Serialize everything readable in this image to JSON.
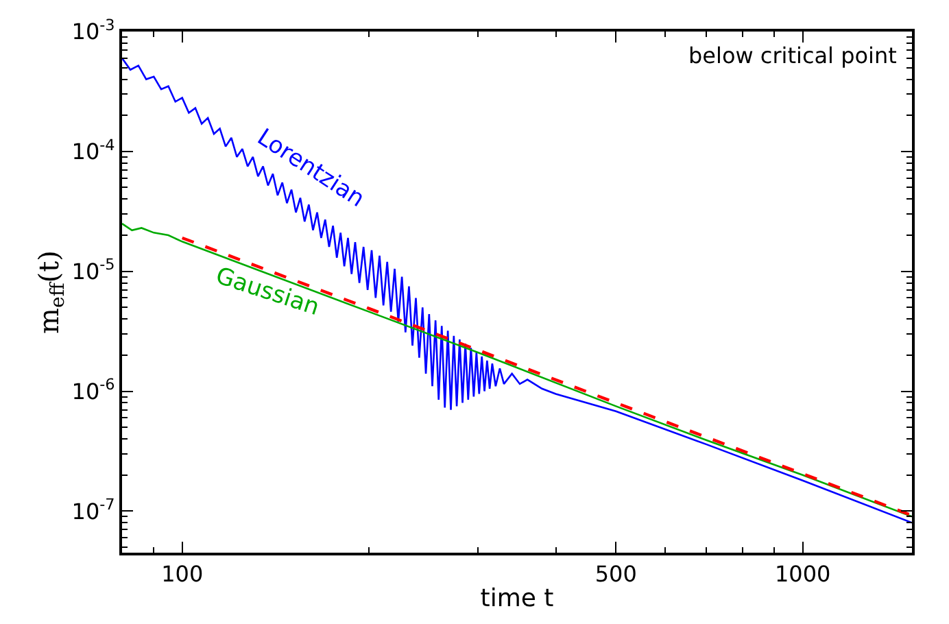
{
  "chart_data": {
    "type": "line",
    "xlabel": "time t",
    "ylabel": "m$_{eff}$(t)",
    "log": "xy",
    "legend": false,
    "marker": "none",
    "xlim": [
      80,
      1500
    ],
    "ylim": [
      4.5e-08,
      0.001
    ],
    "xticks": [
      100,
      500,
      1000
    ],
    "yticks": [
      {
        "value": 1e-07,
        "label": "10$^{-7}$"
      },
      {
        "value": 1e-06,
        "label": "10$^{-6}$"
      },
      {
        "value": 1e-05,
        "label": "10$^{-5}$"
      },
      {
        "value": 0.0001,
        "label": "10$^{-4}$"
      },
      {
        "value": 0.001,
        "label": "10$^{-3}$"
      }
    ],
    "annotations": [
      "below critical point"
    ],
    "series": [
      {
        "name": "Lorentzian",
        "color": "#0000ff",
        "line_style": "solid",
        "x": [
          80,
          82.5,
          85,
          87.5,
          90,
          92.5,
          95,
          97.5,
          100,
          102.5,
          105,
          107.5,
          110,
          112.5,
          115,
          117.5,
          120,
          122.5,
          125,
          127.5,
          130,
          132.5,
          135,
          137.5,
          140,
          142.5,
          145,
          147.5,
          150,
          152.5,
          155,
          157.5,
          160,
          162.5,
          165,
          167.5,
          170,
          172.5,
          175,
          177.5,
          180,
          182.5,
          185,
          187.5,
          190,
          193,
          196,
          199,
          202,
          205,
          208,
          211,
          214,
          217,
          220,
          223,
          226,
          229,
          232,
          235,
          238,
          241,
          244,
          247,
          250,
          253,
          256,
          259,
          262,
          265,
          268,
          271,
          274,
          277,
          280,
          283,
          286,
          289,
          292,
          295,
          298,
          301,
          304,
          307,
          310,
          313,
          316,
          320,
          325,
          330,
          340,
          350,
          360,
          380,
          400,
          500,
          700,
          1000,
          1500
        ],
        "values": [
          0.0006,
          0.00048,
          0.00052,
          0.0004,
          0.00042,
          0.00033,
          0.00035,
          0.00026,
          0.00028,
          0.00021,
          0.00023,
          0.00017,
          0.00019,
          0.00014,
          0.000155,
          0.00011,
          0.00013,
          9e-05,
          0.000105,
          7.5e-05,
          9e-05,
          6.2e-05,
          7.5e-05,
          5.2e-05,
          6.5e-05,
          4.3e-05,
          5.5e-05,
          3.7e-05,
          4.8e-05,
          3.1e-05,
          4.1e-05,
          2.6e-05,
          3.6e-05,
          2.2e-05,
          3.1e-05,
          1.9e-05,
          2.7e-05,
          1.6e-05,
          2.4e-05,
          1.3e-05,
          2.1e-05,
          1.1e-05,
          1.9e-05,
          9.5e-06,
          1.75e-05,
          8e-06,
          1.6e-05,
          7e-06,
          1.5e-05,
          6e-06,
          1.35e-05,
          5.2e-06,
          1.2e-05,
          4.6e-06,
          1.05e-05,
          3.8e-06,
          9e-06,
          3.1e-06,
          7.5e-06,
          2.4e-06,
          6e-06,
          1.9e-06,
          5e-06,
          1.4e-06,
          4.4e-06,
          1.1e-06,
          3.9e-06,
          8.5e-07,
          3.5e-06,
          7.3e-07,
          3.2e-06,
          7e-07,
          2.9e-06,
          7.5e-07,
          2.7e-06,
          8e-07,
          2.5e-06,
          8.5e-07,
          2.3e-06,
          9e-07,
          2.1e-06,
          9.5e-07,
          1.95e-06,
          1e-06,
          1.8e-06,
          1.05e-06,
          1.7e-06,
          1.1e-06,
          1.55e-06,
          1.15e-06,
          1.4e-06,
          1.15e-06,
          1.25e-06,
          1.05e-06,
          9.5e-07,
          6.8e-07,
          3.6e-07,
          1.8e-07,
          8e-08
        ]
      },
      {
        "name": "Gaussian",
        "color": "#00aa00",
        "line_style": "solid",
        "x": [
          80,
          83,
          86,
          90,
          95,
          100,
          200,
          300,
          500,
          700,
          1000,
          1500
        ],
        "values": [
          2.5e-05,
          2.2e-05,
          2.3e-05,
          2.1e-05,
          2e-05,
          1.77e-05,
          4.6e-06,
          2.1e-06,
          7.5e-07,
          3.9e-07,
          2e-07,
          9e-08
        ]
      },
      {
        "color": "#ff0000",
        "line_style": "dashed",
        "x": [
          100,
          200,
          300,
          500,
          1000,
          1500
        ],
        "values": [
          1.9e-05,
          4.9e-06,
          2.2e-06,
          8e-07,
          2.05e-07,
          9.2e-08
        ]
      }
    ]
  }
}
